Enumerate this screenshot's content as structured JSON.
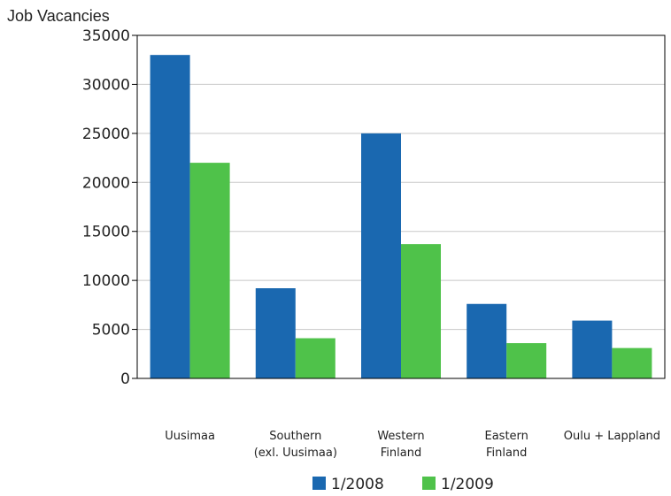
{
  "chart_data": {
    "type": "bar",
    "title": "",
    "ylabel": "Job Vacancies",
    "xlabel": "",
    "ylim": [
      0,
      35000
    ],
    "yticks": [
      0,
      5000,
      10000,
      15000,
      20000,
      25000,
      30000,
      35000
    ],
    "grid": true,
    "legend_position": "bottom",
    "categories": [
      [
        "Uusimaa"
      ],
      [
        "Southern",
        "(exl. Uusimaa)"
      ],
      [
        "Western",
        "Finland"
      ],
      [
        "Eastern",
        "Finland"
      ],
      [
        "Oulu + Lappland"
      ]
    ],
    "series": [
      {
        "name": "1/2008",
        "color": "#1a68b0",
        "values": [
          33000,
          9200,
          25000,
          7600,
          5900
        ]
      },
      {
        "name": "1/2009",
        "color": "#4fc24a",
        "values": [
          22000,
          4100,
          13700,
          3600,
          3100
        ]
      }
    ]
  }
}
